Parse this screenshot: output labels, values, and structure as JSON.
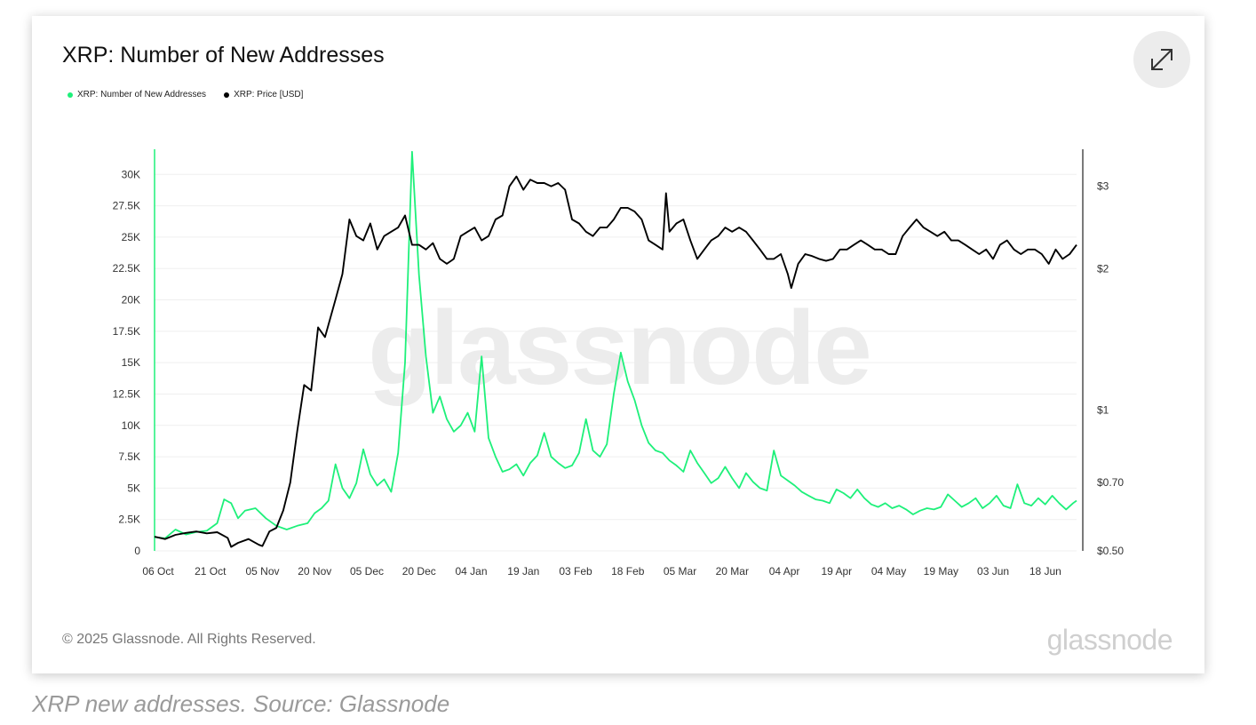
{
  "card": {
    "title": "XRP: Number of New Addresses",
    "expand_icon": "expand-icon",
    "footer_copyright": "© 2025 Glassnode. All Rights Reserved.",
    "footer_logo": "glassnode",
    "watermark": "glassnode"
  },
  "caption": "XRP new addresses. Source: Glassnode",
  "colors": {
    "addresses": "#1ef07a",
    "price": "#000000"
  },
  "chart_data": {
    "type": "line",
    "title": "XRP: Number of New Addresses",
    "legend_position": "top-left",
    "grid": true,
    "x_range": [
      "2024-10-06",
      "2025-06-28"
    ],
    "x_tick_labels": [
      "06 Oct",
      "21 Oct",
      "05 Nov",
      "20 Nov",
      "05 Dec",
      "20 Dec",
      "04 Jan",
      "19 Jan",
      "03 Feb",
      "18 Feb",
      "05 Mar",
      "20 Mar",
      "04 Apr",
      "19 Apr",
      "04 May",
      "19 May",
      "03 Jun",
      "18 Jun"
    ],
    "y_left": {
      "range": [
        0,
        32000
      ],
      "ticks": [
        0,
        2500,
        5000,
        7500,
        10000,
        12500,
        15000,
        17500,
        20000,
        22500,
        25000,
        27500,
        30000
      ],
      "tick_labels": [
        "0",
        "2.5K",
        "5K",
        "7.5K",
        "10K",
        "12.5K",
        "15K",
        "17.5K",
        "20K",
        "22.5K",
        "25K",
        "27.5K",
        "30K"
      ]
    },
    "y_right": {
      "scale": "log",
      "range": [
        0.5,
        3.6
      ],
      "ticks": [
        0.5,
        0.7,
        1,
        2,
        3
      ],
      "tick_labels": [
        "$0.50",
        "$0.70",
        "$1",
        "$2",
        "$3"
      ]
    },
    "series": [
      {
        "name": "XRP: Number of New Addresses",
        "axis": "left",
        "points": [
          [
            "2024-10-06",
            1100
          ],
          [
            "2024-10-09",
            1000
          ],
          [
            "2024-10-12",
            1700
          ],
          [
            "2024-10-15",
            1300
          ],
          [
            "2024-10-18",
            1500
          ],
          [
            "2024-10-21",
            1600
          ],
          [
            "2024-10-24",
            2200
          ],
          [
            "2024-10-26",
            4100
          ],
          [
            "2024-10-28",
            3800
          ],
          [
            "2024-10-30",
            2600
          ],
          [
            "2024-11-01",
            3200
          ],
          [
            "2024-11-04",
            3400
          ],
          [
            "2024-11-07",
            2600
          ],
          [
            "2024-11-10",
            2000
          ],
          [
            "2024-11-13",
            1700
          ],
          [
            "2024-11-16",
            2000
          ],
          [
            "2024-11-19",
            2200
          ],
          [
            "2024-11-21",
            3000
          ],
          [
            "2024-11-23",
            3400
          ],
          [
            "2024-11-25",
            4000
          ],
          [
            "2024-11-27",
            6900
          ],
          [
            "2024-11-29",
            5000
          ],
          [
            "2024-12-01",
            4200
          ],
          [
            "2024-12-03",
            5400
          ],
          [
            "2024-12-05",
            8100
          ],
          [
            "2024-12-07",
            6100
          ],
          [
            "2024-12-09",
            5200
          ],
          [
            "2024-12-11",
            5700
          ],
          [
            "2024-12-13",
            4700
          ],
          [
            "2024-12-15",
            7800
          ],
          [
            "2024-12-17",
            15000
          ],
          [
            "2024-12-19",
            31800
          ],
          [
            "2024-12-21",
            22000
          ],
          [
            "2024-12-23",
            15500
          ],
          [
            "2024-12-25",
            11000
          ],
          [
            "2024-12-27",
            12300
          ],
          [
            "2024-12-29",
            10500
          ],
          [
            "2024-12-31",
            9500
          ],
          [
            "2025-01-02",
            10000
          ],
          [
            "2025-01-04",
            11000
          ],
          [
            "2025-01-06",
            9500
          ],
          [
            "2025-01-08",
            15500
          ],
          [
            "2025-01-10",
            9000
          ],
          [
            "2025-01-12",
            7500
          ],
          [
            "2025-01-14",
            6300
          ],
          [
            "2025-01-16",
            6500
          ],
          [
            "2025-01-18",
            6900
          ],
          [
            "2025-01-20",
            6000
          ],
          [
            "2025-01-22",
            7000
          ],
          [
            "2025-01-24",
            7600
          ],
          [
            "2025-01-26",
            9400
          ],
          [
            "2025-01-28",
            7500
          ],
          [
            "2025-01-30",
            7000
          ],
          [
            "2025-02-01",
            6600
          ],
          [
            "2025-02-03",
            6800
          ],
          [
            "2025-02-05",
            7800
          ],
          [
            "2025-02-07",
            10500
          ],
          [
            "2025-02-09",
            8000
          ],
          [
            "2025-02-11",
            7500
          ],
          [
            "2025-02-13",
            8500
          ],
          [
            "2025-02-15",
            12500
          ],
          [
            "2025-02-17",
            15800
          ],
          [
            "2025-02-19",
            13500
          ],
          [
            "2025-02-21",
            12000
          ],
          [
            "2025-02-23",
            10000
          ],
          [
            "2025-02-25",
            8600
          ],
          [
            "2025-02-27",
            8000
          ],
          [
            "2025-03-01",
            7800
          ],
          [
            "2025-03-03",
            7200
          ],
          [
            "2025-03-05",
            6800
          ],
          [
            "2025-03-07",
            6300
          ],
          [
            "2025-03-09",
            8000
          ],
          [
            "2025-03-11",
            7000
          ],
          [
            "2025-03-13",
            6200
          ],
          [
            "2025-03-15",
            5400
          ],
          [
            "2025-03-17",
            5800
          ],
          [
            "2025-03-19",
            6700
          ],
          [
            "2025-03-21",
            5800
          ],
          [
            "2025-03-23",
            5000
          ],
          [
            "2025-03-25",
            6200
          ],
          [
            "2025-03-27",
            5500
          ],
          [
            "2025-03-29",
            5000
          ],
          [
            "2025-03-31",
            4800
          ],
          [
            "2025-04-02",
            8000
          ],
          [
            "2025-04-04",
            6000
          ],
          [
            "2025-04-06",
            5600
          ],
          [
            "2025-04-08",
            5200
          ],
          [
            "2025-04-10",
            4700
          ],
          [
            "2025-04-12",
            4400
          ],
          [
            "2025-04-14",
            4100
          ],
          [
            "2025-04-16",
            4000
          ],
          [
            "2025-04-18",
            3800
          ],
          [
            "2025-04-20",
            4900
          ],
          [
            "2025-04-22",
            4600
          ],
          [
            "2025-04-24",
            4200
          ],
          [
            "2025-04-26",
            4900
          ],
          [
            "2025-04-28",
            4200
          ],
          [
            "2025-04-30",
            3700
          ],
          [
            "2025-05-02",
            3500
          ],
          [
            "2025-05-04",
            3800
          ],
          [
            "2025-05-06",
            3400
          ],
          [
            "2025-05-08",
            3600
          ],
          [
            "2025-05-10",
            3300
          ],
          [
            "2025-05-12",
            2900
          ],
          [
            "2025-05-14",
            3200
          ],
          [
            "2025-05-16",
            3400
          ],
          [
            "2025-05-18",
            3300
          ],
          [
            "2025-05-20",
            3500
          ],
          [
            "2025-05-22",
            4500
          ],
          [
            "2025-05-24",
            4000
          ],
          [
            "2025-05-26",
            3500
          ],
          [
            "2025-05-28",
            3800
          ],
          [
            "2025-05-30",
            4200
          ],
          [
            "2025-06-01",
            3400
          ],
          [
            "2025-06-03",
            3800
          ],
          [
            "2025-06-05",
            4400
          ],
          [
            "2025-06-07",
            3600
          ],
          [
            "2025-06-09",
            3400
          ],
          [
            "2025-06-11",
            5300
          ],
          [
            "2025-06-13",
            3800
          ],
          [
            "2025-06-15",
            3600
          ],
          [
            "2025-06-17",
            4200
          ],
          [
            "2025-06-19",
            3700
          ],
          [
            "2025-06-21",
            4400
          ],
          [
            "2025-06-23",
            3800
          ],
          [
            "2025-06-25",
            3300
          ],
          [
            "2025-06-27",
            3800
          ],
          [
            "2025-06-28",
            4000
          ]
        ]
      },
      {
        "name": "XRP: Price [USD]",
        "axis": "right",
        "points": [
          [
            "2024-10-06",
            0.536
          ],
          [
            "2024-10-09",
            0.53
          ],
          [
            "2024-10-12",
            0.541
          ],
          [
            "2024-10-15",
            0.546
          ],
          [
            "2024-10-18",
            0.55
          ],
          [
            "2024-10-21",
            0.545
          ],
          [
            "2024-10-24",
            0.548
          ],
          [
            "2024-10-27",
            0.533
          ],
          [
            "2024-10-28",
            0.51
          ],
          [
            "2024-10-30",
            0.52
          ],
          [
            "2024-11-02",
            0.53
          ],
          [
            "2024-11-05",
            0.515
          ],
          [
            "2024-11-06",
            0.512
          ],
          [
            "2024-11-08",
            0.55
          ],
          [
            "2024-11-10",
            0.56
          ],
          [
            "2024-11-12",
            0.61
          ],
          [
            "2024-11-14",
            0.7
          ],
          [
            "2024-11-16",
            0.9
          ],
          [
            "2024-11-18",
            1.13
          ],
          [
            "2024-11-20",
            1.1
          ],
          [
            "2024-11-22",
            1.5
          ],
          [
            "2024-11-24",
            1.43
          ],
          [
            "2024-11-27",
            1.72
          ],
          [
            "2024-11-29",
            1.95
          ],
          [
            "2024-12-01",
            2.55
          ],
          [
            "2024-12-03",
            2.35
          ],
          [
            "2024-12-05",
            2.3
          ],
          [
            "2024-12-07",
            2.5
          ],
          [
            "2024-12-09",
            2.2
          ],
          [
            "2024-12-11",
            2.35
          ],
          [
            "2024-12-13",
            2.4
          ],
          [
            "2024-12-15",
            2.45
          ],
          [
            "2024-12-17",
            2.6
          ],
          [
            "2024-12-19",
            2.25
          ],
          [
            "2024-12-21",
            2.25
          ],
          [
            "2024-12-23",
            2.2
          ],
          [
            "2024-12-25",
            2.27
          ],
          [
            "2024-12-27",
            2.1
          ],
          [
            "2024-12-29",
            2.05
          ],
          [
            "2024-12-31",
            2.1
          ],
          [
            "2025-01-02",
            2.35
          ],
          [
            "2025-01-04",
            2.4
          ],
          [
            "2025-01-06",
            2.45
          ],
          [
            "2025-01-08",
            2.3
          ],
          [
            "2025-01-10",
            2.35
          ],
          [
            "2025-01-12",
            2.55
          ],
          [
            "2025-01-14",
            2.6
          ],
          [
            "2025-01-16",
            3.0
          ],
          [
            "2025-01-18",
            3.15
          ],
          [
            "2025-01-20",
            2.95
          ],
          [
            "2025-01-22",
            3.1
          ],
          [
            "2025-01-24",
            3.05
          ],
          [
            "2025-01-26",
            3.05
          ],
          [
            "2025-01-28",
            3.0
          ],
          [
            "2025-01-30",
            3.05
          ],
          [
            "2025-02-01",
            2.95
          ],
          [
            "2025-02-03",
            2.55
          ],
          [
            "2025-02-05",
            2.5
          ],
          [
            "2025-02-07",
            2.4
          ],
          [
            "2025-02-09",
            2.35
          ],
          [
            "2025-02-11",
            2.45
          ],
          [
            "2025-02-13",
            2.45
          ],
          [
            "2025-02-15",
            2.55
          ],
          [
            "2025-02-17",
            2.7
          ],
          [
            "2025-02-19",
            2.7
          ],
          [
            "2025-02-21",
            2.65
          ],
          [
            "2025-02-23",
            2.55
          ],
          [
            "2025-02-25",
            2.3
          ],
          [
            "2025-02-27",
            2.25
          ],
          [
            "2025-03-01",
            2.2
          ],
          [
            "2025-03-02",
            2.9
          ],
          [
            "2025-03-03",
            2.4
          ],
          [
            "2025-03-05",
            2.5
          ],
          [
            "2025-03-07",
            2.55
          ],
          [
            "2025-03-09",
            2.3
          ],
          [
            "2025-03-11",
            2.1
          ],
          [
            "2025-03-13",
            2.2
          ],
          [
            "2025-03-15",
            2.3
          ],
          [
            "2025-03-17",
            2.35
          ],
          [
            "2025-03-19",
            2.45
          ],
          [
            "2025-03-21",
            2.4
          ],
          [
            "2025-03-23",
            2.45
          ],
          [
            "2025-03-25",
            2.4
          ],
          [
            "2025-03-27",
            2.3
          ],
          [
            "2025-03-29",
            2.2
          ],
          [
            "2025-03-31",
            2.1
          ],
          [
            "2025-04-02",
            2.1
          ],
          [
            "2025-04-04",
            2.15
          ],
          [
            "2025-04-06",
            1.95
          ],
          [
            "2025-04-07",
            1.82
          ],
          [
            "2025-04-09",
            2.05
          ],
          [
            "2025-04-11",
            2.15
          ],
          [
            "2025-04-13",
            2.13
          ],
          [
            "2025-04-15",
            2.1
          ],
          [
            "2025-04-17",
            2.08
          ],
          [
            "2025-04-19",
            2.1
          ],
          [
            "2025-04-21",
            2.2
          ],
          [
            "2025-04-23",
            2.2
          ],
          [
            "2025-04-25",
            2.25
          ],
          [
            "2025-04-27",
            2.3
          ],
          [
            "2025-04-29",
            2.25
          ],
          [
            "2025-05-01",
            2.2
          ],
          [
            "2025-05-03",
            2.2
          ],
          [
            "2025-05-05",
            2.15
          ],
          [
            "2025-05-07",
            2.15
          ],
          [
            "2025-05-09",
            2.35
          ],
          [
            "2025-05-11",
            2.45
          ],
          [
            "2025-05-13",
            2.55
          ],
          [
            "2025-05-15",
            2.45
          ],
          [
            "2025-05-17",
            2.4
          ],
          [
            "2025-05-19",
            2.35
          ],
          [
            "2025-05-21",
            2.4
          ],
          [
            "2025-05-23",
            2.3
          ],
          [
            "2025-05-25",
            2.3
          ],
          [
            "2025-05-27",
            2.25
          ],
          [
            "2025-05-29",
            2.2
          ],
          [
            "2025-05-31",
            2.15
          ],
          [
            "2025-06-02",
            2.2
          ],
          [
            "2025-06-04",
            2.1
          ],
          [
            "2025-06-06",
            2.25
          ],
          [
            "2025-06-08",
            2.3
          ],
          [
            "2025-06-10",
            2.2
          ],
          [
            "2025-06-12",
            2.15
          ],
          [
            "2025-06-14",
            2.2
          ],
          [
            "2025-06-16",
            2.2
          ],
          [
            "2025-06-18",
            2.15
          ],
          [
            "2025-06-20",
            2.05
          ],
          [
            "2025-06-22",
            2.2
          ],
          [
            "2025-06-24",
            2.1
          ],
          [
            "2025-06-26",
            2.15
          ],
          [
            "2025-06-28",
            2.25
          ]
        ]
      }
    ]
  }
}
